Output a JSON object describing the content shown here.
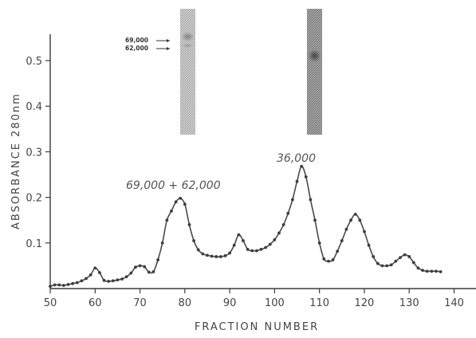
{
  "chart_data": {
    "type": "line",
    "xlabel": "FRACTION NUMBER",
    "ylabel": "ABSORBANCE 280nm",
    "xlim": [
      50,
      140
    ],
    "ylim": [
      0,
      0.55
    ],
    "x_ticks": [
      50,
      60,
      70,
      80,
      90,
      100,
      110,
      120,
      130,
      140
    ],
    "x_tick_labels": [
      "50",
      "60",
      "70",
      "80",
      "90",
      "100",
      "110",
      "120",
      "130",
      "140"
    ],
    "y_ticks": [
      0.1,
      0.2,
      0.3,
      0.4,
      0.5
    ],
    "y_tick_labels": [
      "0.1",
      "0.2",
      "0.3",
      "0.4",
      "0.5"
    ],
    "grid": false,
    "legend": "none",
    "x": [
      50,
      51,
      52,
      53,
      54,
      55,
      56,
      57,
      58,
      59,
      60,
      61,
      62,
      63,
      64,
      65,
      66,
      67,
      68,
      69,
      70,
      71,
      72,
      73,
      74,
      75,
      76,
      77,
      78,
      79,
      80,
      81,
      82,
      83,
      84,
      85,
      86,
      87,
      88,
      89,
      90,
      91,
      92,
      93,
      94,
      95,
      96,
      97,
      98,
      99,
      100,
      101,
      102,
      103,
      104,
      105,
      106,
      107,
      108,
      109,
      110,
      111,
      112,
      113,
      114,
      115,
      116,
      117,
      118,
      119,
      120,
      121,
      122,
      123,
      124,
      125,
      126,
      127,
      128,
      129,
      130,
      131,
      132,
      133,
      134,
      135,
      136,
      137
    ],
    "values": [
      0.005,
      0.008,
      0.008,
      0.007,
      0.009,
      0.011,
      0.013,
      0.017,
      0.022,
      0.03,
      0.045,
      0.035,
      0.018,
      0.016,
      0.017,
      0.019,
      0.021,
      0.026,
      0.034,
      0.047,
      0.05,
      0.048,
      0.036,
      0.037,
      0.063,
      0.1,
      0.15,
      0.17,
      0.19,
      0.198,
      0.185,
      0.14,
      0.105,
      0.085,
      0.076,
      0.073,
      0.071,
      0.07,
      0.07,
      0.072,
      0.078,
      0.095,
      0.118,
      0.105,
      0.086,
      0.083,
      0.083,
      0.086,
      0.09,
      0.097,
      0.107,
      0.122,
      0.14,
      0.165,
      0.195,
      0.235,
      0.268,
      0.245,
      0.195,
      0.15,
      0.1,
      0.065,
      0.06,
      0.063,
      0.082,
      0.105,
      0.13,
      0.15,
      0.163,
      0.15,
      0.125,
      0.095,
      0.07,
      0.055,
      0.05,
      0.05,
      0.052,
      0.06,
      0.068,
      0.074,
      0.07,
      0.057,
      0.045,
      0.04,
      0.038,
      0.038,
      0.038,
      0.037
    ],
    "annotations": [
      "69,000 + 62,000",
      "36,000"
    ]
  },
  "gel_labels": [
    "69,000",
    "62,000"
  ],
  "colors": {
    "curve": "#4a4a4a",
    "axis": "#3a3a3a",
    "gel_band": "#6a6a6a",
    "gel_background": "#c8c8c8"
  }
}
